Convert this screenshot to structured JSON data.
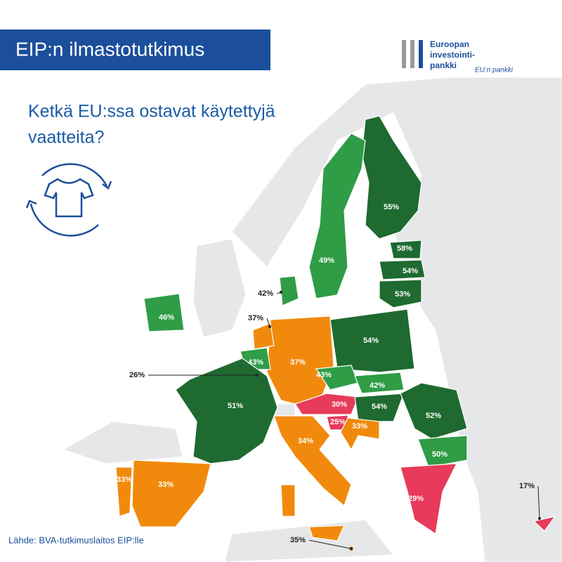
{
  "header": {
    "title": "EIP:n ilmastotutkimus"
  },
  "logo": {
    "lines": [
      "Euroopan",
      "investointi-",
      "pankki"
    ],
    "tagline": "EU:n pankki"
  },
  "question": {
    "lines": [
      "Ketkä EU:ssa ostavat käytettyjä",
      "vaatteita?"
    ]
  },
  "source": "Lähde: BVA-tutkimuslaitos EIP:lle",
  "countries": [
    {
      "label": "55%"
    },
    {
      "label": "58%"
    },
    {
      "label": "54%"
    },
    {
      "label": "53%"
    },
    {
      "label": "49%"
    },
    {
      "label": "42%"
    },
    {
      "label": "46%"
    },
    {
      "label": "37%"
    },
    {
      "label": "37%"
    },
    {
      "label": "54%"
    },
    {
      "label": "43%"
    },
    {
      "label": "26%"
    },
    {
      "label": "43%"
    },
    {
      "label": "42%"
    },
    {
      "label": "30%"
    },
    {
      "label": "54%"
    },
    {
      "label": "52%"
    },
    {
      "label": "50%"
    },
    {
      "label": "25%"
    },
    {
      "label": "33%"
    },
    {
      "label": "51%"
    },
    {
      "label": "34%"
    },
    {
      "label": "33%"
    },
    {
      "label": "33%"
    },
    {
      "label": "29%"
    },
    {
      "label": "17%"
    },
    {
      "label": "35%"
    }
  ]
}
